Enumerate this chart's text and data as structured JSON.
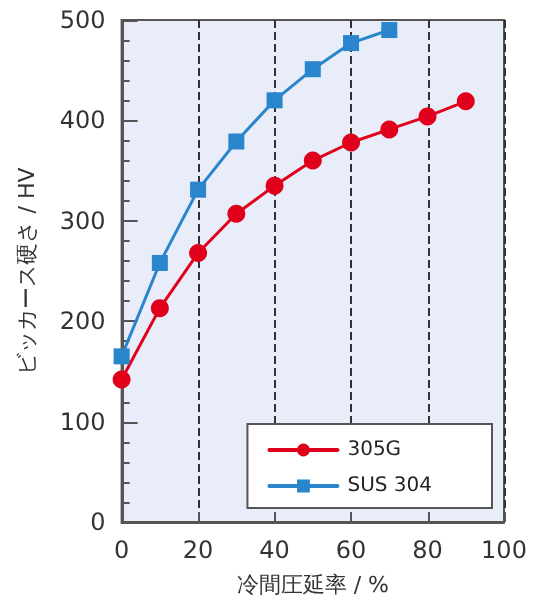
{
  "chart_data": {
    "type": "line",
    "xlabel": "冷間圧延率 / %",
    "ylabel": "ビッカース硬さ / HV",
    "xlim": [
      0,
      100
    ],
    "xticks": [
      0,
      20,
      40,
      60,
      80,
      100
    ],
    "ylim": [
      0,
      500
    ],
    "yticks": [
      0,
      100,
      200,
      300,
      400,
      500
    ],
    "grid": "x",
    "legend": "bottom right",
    "line_style": "solid",
    "series": [
      {
        "name": "305G",
        "color": "#e0001b",
        "marker": "circle",
        "x": [
          0,
          10,
          20,
          30,
          40,
          50,
          60,
          70,
          80,
          90
        ],
        "values": [
          142,
          213,
          268,
          307,
          335,
          360,
          378,
          391,
          404,
          419
        ]
      },
      {
        "name": "SUS 304",
        "color": "#2a86cc",
        "marker": "square",
        "x": [
          0,
          10,
          20,
          30,
          40,
          50,
          60,
          70
        ],
        "values": [
          165,
          258,
          331,
          379,
          420,
          451,
          477,
          490
        ]
      }
    ]
  }
}
